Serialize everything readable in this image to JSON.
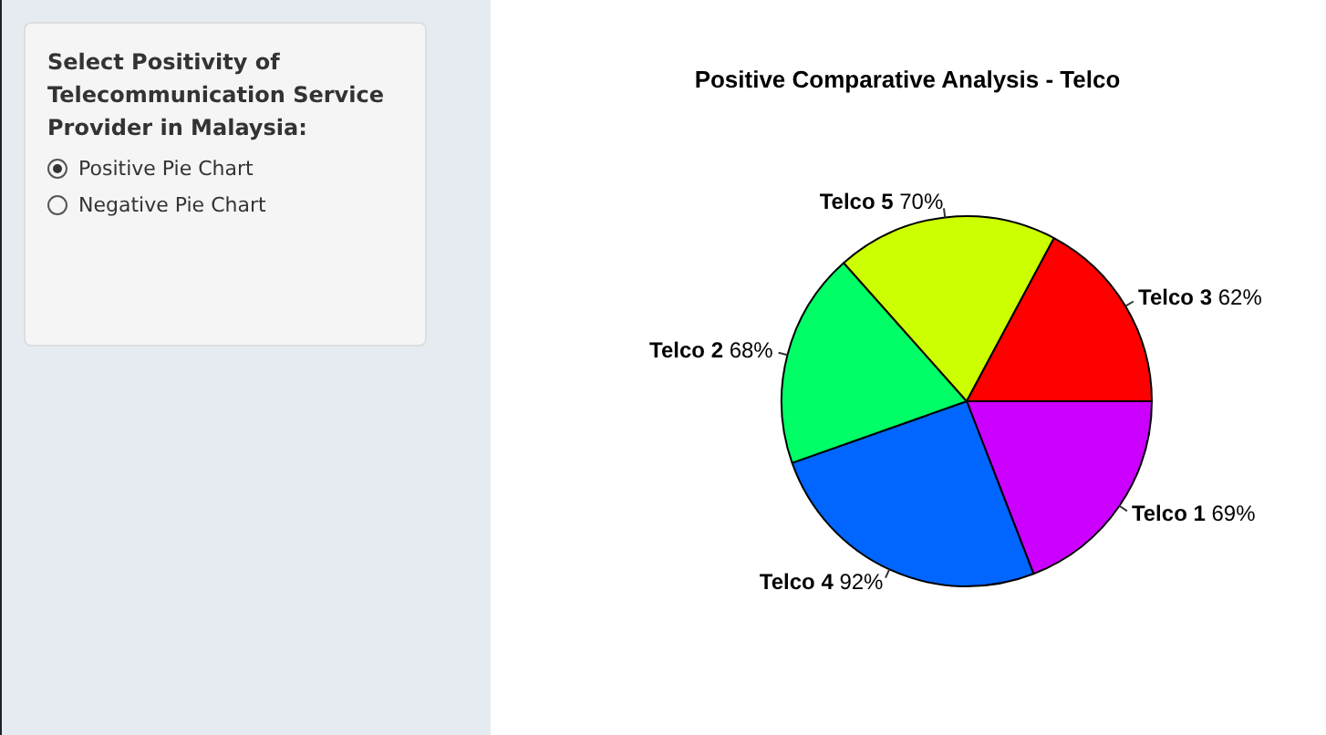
{
  "chart_data": {
    "type": "pie",
    "title": "Positive Comparative Analysis - Telco",
    "categories": [
      "Telco 1",
      "Telco 4",
      "Telco 2",
      "Telco 5",
      "Telco 3"
    ],
    "values": [
      69,
      92,
      68,
      70,
      62
    ],
    "value_labels": [
      "69%",
      "92%",
      "68%",
      "70%",
      "62%"
    ],
    "colors": [
      "#cc00ff",
      "#0066ff",
      "#00ff66",
      "#ccff00",
      "#ff0000"
    ],
    "legend": false,
    "annotations": [
      "Select Positivity of Telecommunication Service Provider in Malaysia:",
      "Positive Pie Chart",
      "Negative Pie Chart"
    ]
  }
}
